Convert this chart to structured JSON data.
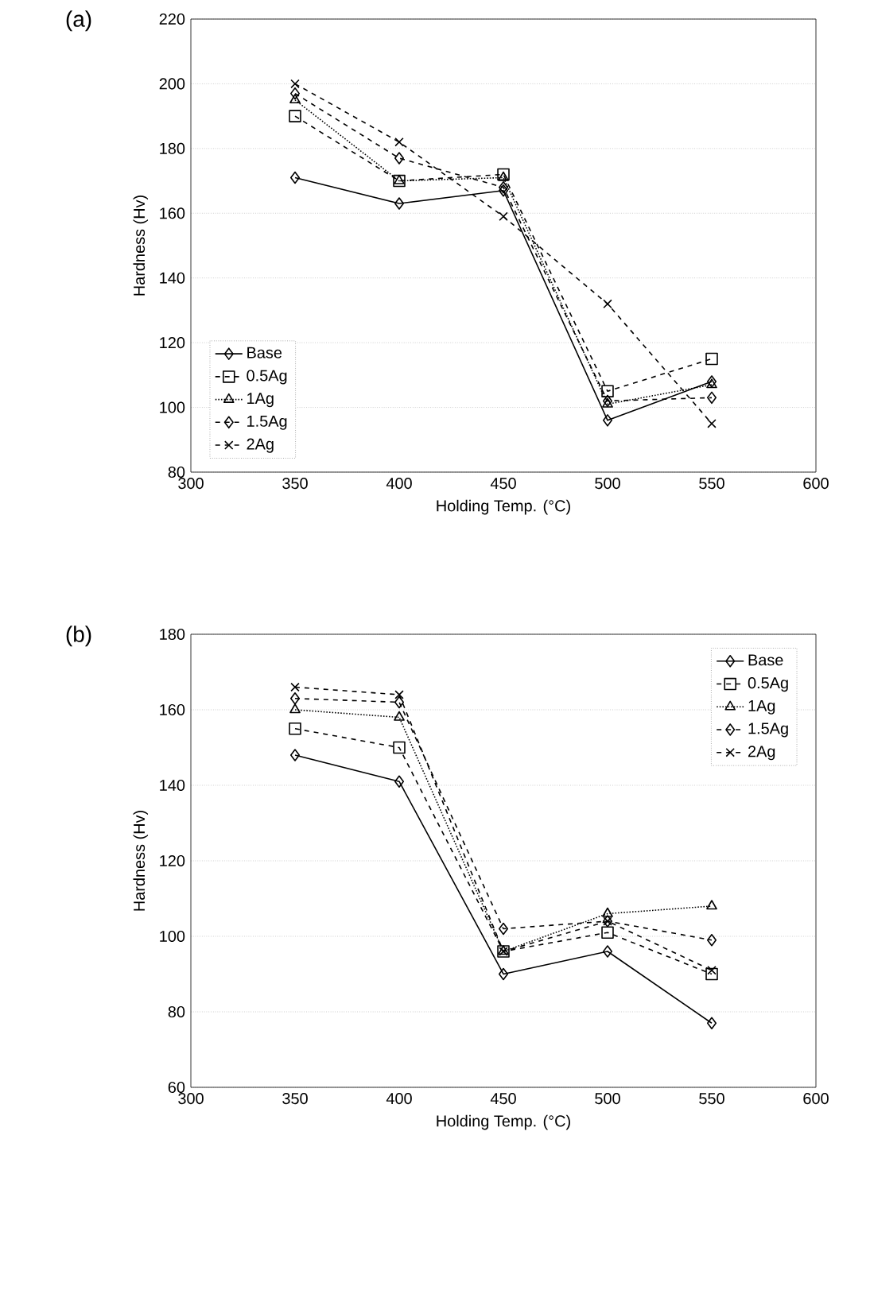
{
  "chart_data": [
    {
      "type": "line",
      "title": "(a)",
      "xlabel": "Holding Temp. (°C)",
      "ylabel": "Hardness (Hv)",
      "xlim": [
        300,
        600
      ],
      "xticks": [
        300,
        350,
        400,
        450,
        500,
        550,
        600
      ],
      "ylim": [
        80,
        220
      ],
      "yticks": [
        80,
        100,
        120,
        140,
        160,
        180,
        200,
        220
      ],
      "grid": "y",
      "legend": "bottom left",
      "x": [
        350,
        400,
        450,
        500,
        550
      ],
      "series": [
        {
          "name": "Base",
          "color": "#000000",
          "marker": "diamond",
          "line_style": "solid",
          "values": [
            171,
            163,
            167,
            96,
            108
          ]
        },
        {
          "name": "0.5Ag",
          "color": "#000000",
          "marker": "square",
          "line_style": "dashed",
          "values": [
            190,
            170,
            172,
            105,
            115
          ]
        },
        {
          "name": "1Ag",
          "color": "#000000",
          "marker": "triangle",
          "line_style": "dotted",
          "values": [
            195,
            170,
            171,
            101,
            107
          ]
        },
        {
          "name": "1.5Ag",
          "color": "#000000",
          "marker": "diamond",
          "line_style": "dashed",
          "values": [
            197,
            177,
            168,
            102,
            103
          ]
        },
        {
          "name": "2Ag",
          "color": "#000000",
          "marker": "cross",
          "line_style": "dashed",
          "values": [
            200,
            182,
            159,
            132,
            95
          ]
        }
      ]
    },
    {
      "type": "line",
      "title": "(b)",
      "xlabel": "Holding Temp. (°C)",
      "ylabel": "Hardness (Hv)",
      "xlim": [
        300,
        600
      ],
      "xticks": [
        300,
        350,
        400,
        450,
        500,
        550,
        600
      ],
      "ylim": [
        60,
        180
      ],
      "yticks": [
        60,
        80,
        100,
        120,
        140,
        160,
        180
      ],
      "grid": "y",
      "legend": "top right",
      "x": [
        350,
        400,
        450,
        500,
        550
      ],
      "series": [
        {
          "name": "Base",
          "color": "#000000",
          "marker": "diamond",
          "line_style": "solid",
          "values": [
            148,
            141,
            90,
            96,
            77
          ]
        },
        {
          "name": "0.5Ag",
          "color": "#000000",
          "marker": "square",
          "line_style": "dashed",
          "values": [
            155,
            150,
            96,
            101,
            90
          ]
        },
        {
          "name": "1Ag",
          "color": "#000000",
          "marker": "triangle",
          "line_style": "dotted",
          "values": [
            160,
            158,
            96,
            106,
            108
          ]
        },
        {
          "name": "1.5Ag",
          "color": "#000000",
          "marker": "diamond",
          "line_style": "dashed",
          "values": [
            163,
            162,
            102,
            104,
            99
          ]
        },
        {
          "name": "2Ag",
          "color": "#000000",
          "marker": "cross",
          "line_style": "dashed",
          "values": [
            166,
            164,
            96,
            104,
            91
          ]
        }
      ]
    }
  ]
}
